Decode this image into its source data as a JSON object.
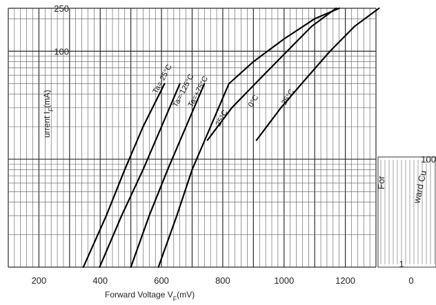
{
  "chart_data": {
    "type": "line",
    "title": "",
    "xlabel_main": "Forward Voltage  V",
    "xlabel_sub": "F",
    "xlabel_unit": "(mV)",
    "ylabel_main": "urrent  I",
    "ylabel_sub": "F",
    "ylabel_unit": "(mA)",
    "x_scale": "linear",
    "y_scale": "log",
    "xlim": [
      100,
      1300
    ],
    "ylim": [
      1,
      250
    ],
    "x_ticks": [
      200,
      400,
      600,
      800,
      1000,
      1200
    ],
    "x_tick_labels": [
      "200",
      "400",
      "600",
      "800",
      "1000",
      "1200"
    ],
    "y_tick_labels": [
      "250",
      "100"
    ],
    "y_tick_values": [
      250,
      100
    ],
    "grid": true,
    "series": [
      {
        "label": "Ta=-25°C",
        "x": [
          345,
          420,
          480,
          540,
          610
        ],
        "y": [
          1,
          3,
          8,
          20,
          50
        ]
      },
      {
        "label": "Ta=-125°C",
        "x": [
          398,
          470,
          540,
          600,
          660
        ],
        "y": [
          1,
          3,
          8,
          20,
          50
        ]
      },
      {
        "label": "Ta=+75°C",
        "x": [
          500,
          560,
          620,
          680,
          740
        ],
        "y": [
          1,
          3,
          8,
          20,
          50
        ]
      },
      {
        "label": "25°C",
        "x": [
          590,
          650,
          700,
          760,
          820,
          900,
          1000,
          1100,
          1180
        ],
        "y": [
          1,
          3,
          8,
          20,
          50,
          80,
          130,
          200,
          250
        ]
      },
      {
        "label": "0°C",
        "x": [
          750,
          830,
          920,
          1010,
          1090,
          1170
        ],
        "y": [
          15,
          30,
          55,
          100,
          170,
          250
        ]
      },
      {
        "label": "-25°C",
        "x": [
          910,
          990,
          1070,
          1150,
          1230,
          1310
        ],
        "y": [
          15,
          30,
          55,
          100,
          170,
          250
        ]
      }
    ],
    "side_panel": {
      "text_fragments": [
        "For",
        "ward Cu",
        "100",
        "1",
        "0"
      ]
    }
  }
}
